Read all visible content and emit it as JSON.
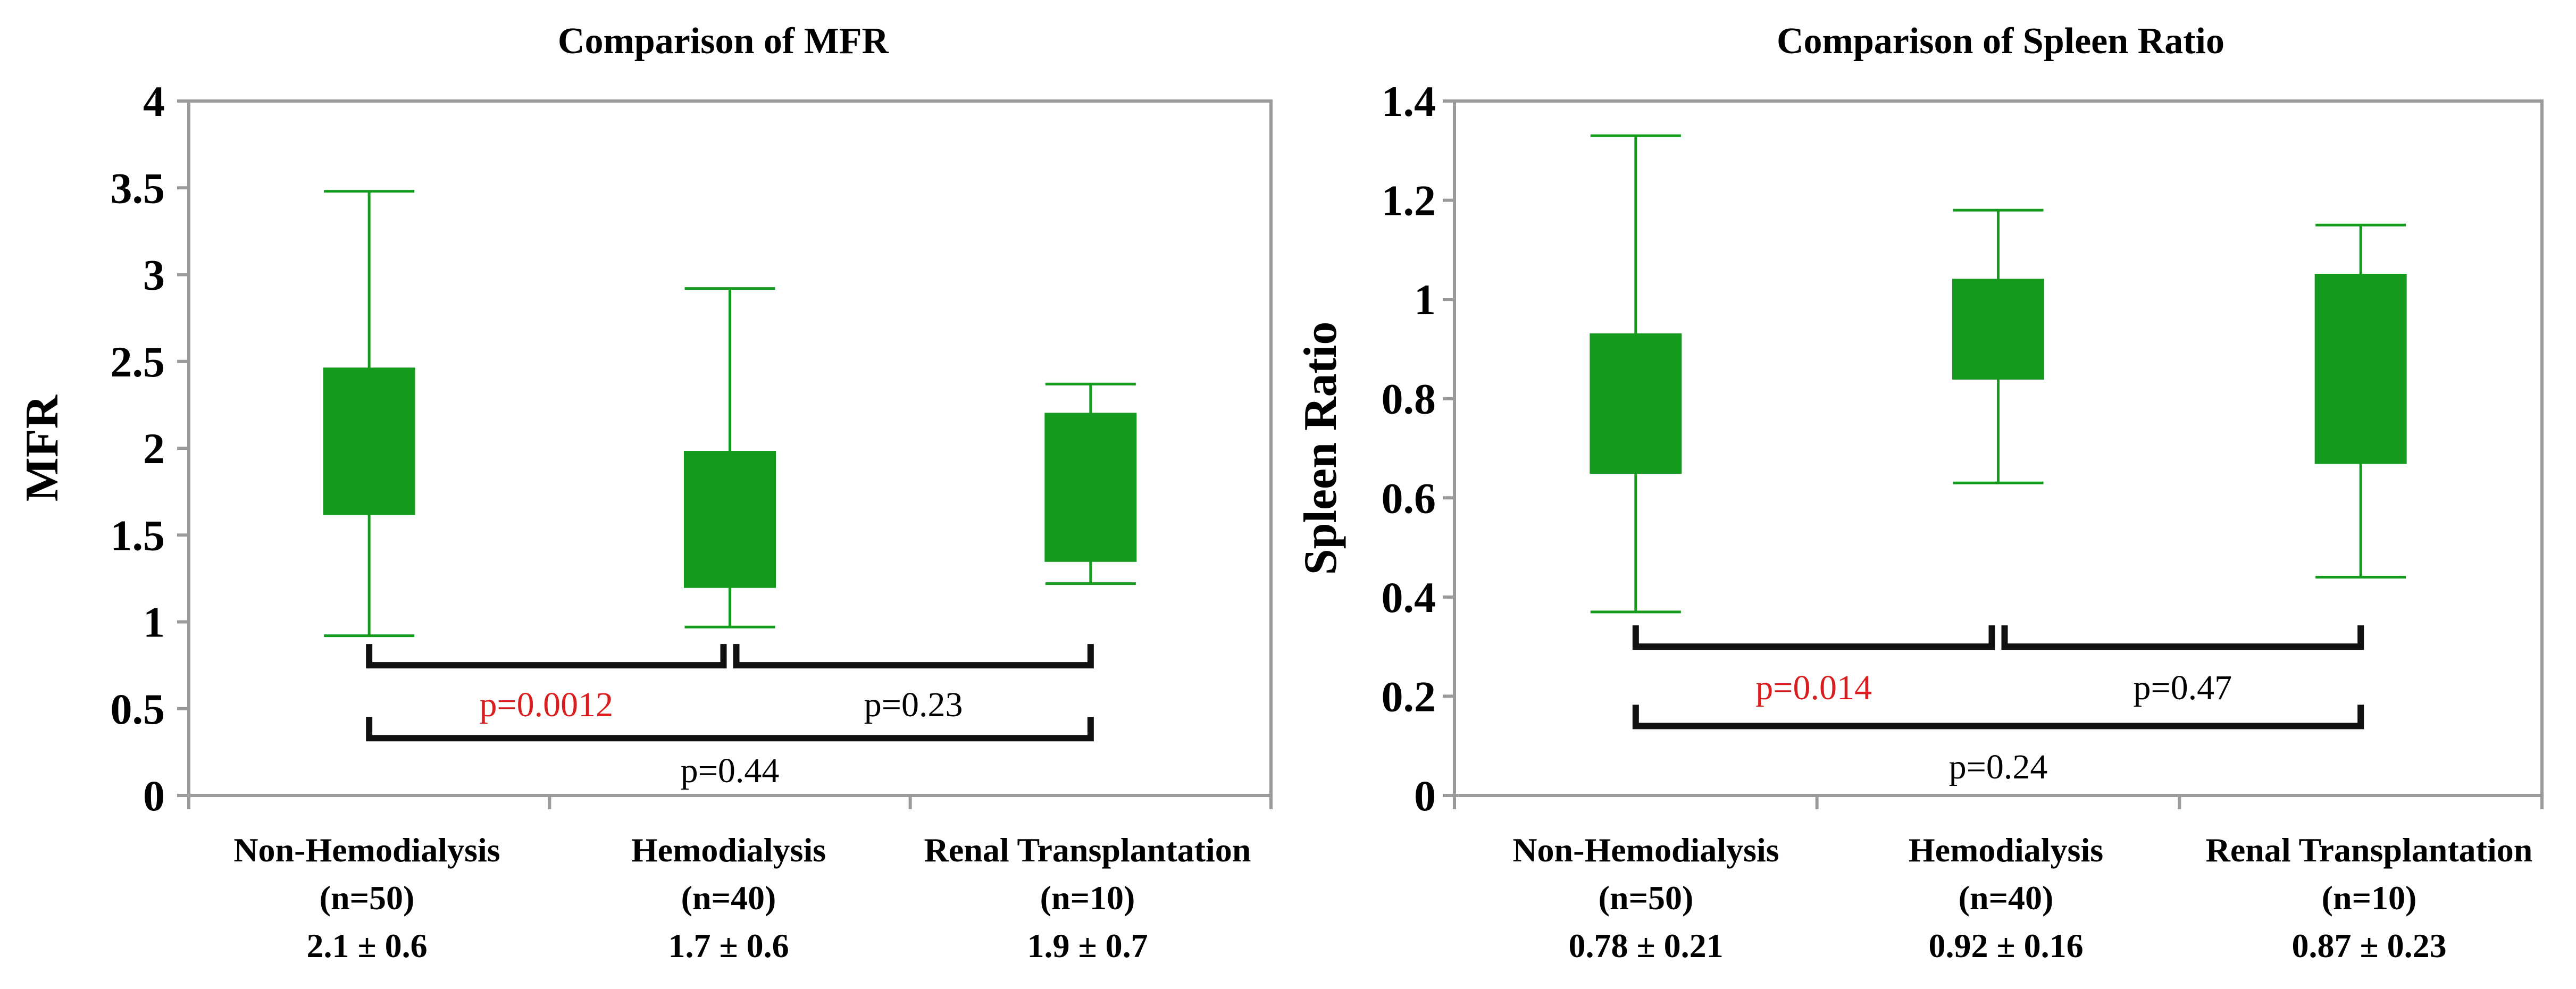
{
  "colors": {
    "box": "#149b1e",
    "axis": "#9a9a9a",
    "bracket": "#111111",
    "significant": "#d81e1e",
    "text": "#000000"
  },
  "chart_data": [
    {
      "type": "box",
      "title": "Comparison of MFR",
      "ylabel": "MFR",
      "xlabel": "",
      "ylim": [
        0,
        4
      ],
      "yticks": [
        "0",
        "0.5",
        "1",
        "1.5",
        "2",
        "2.5",
        "3",
        "3.5",
        "4"
      ],
      "categories": [
        {
          "name": "Non-Hemodialysis",
          "n": "(n=50)",
          "stat": "2.1 ± 0.6"
        },
        {
          "name": "Hemodialysis",
          "n": "(n=40)",
          "stat": "1.7 ± 0.6"
        },
        {
          "name": "Renal Transplantation",
          "n": "(n=10)",
          "stat": "1.9 ± 0.7"
        }
      ],
      "boxes": [
        {
          "min": 0.92,
          "q1": 1.62,
          "q3": 2.46,
          "max": 3.48
        },
        {
          "min": 0.97,
          "q1": 1.2,
          "q3": 1.98,
          "max": 2.92
        },
        {
          "min": 1.22,
          "q1": 1.35,
          "q3": 2.2,
          "max": 2.37
        }
      ],
      "comparisons": [
        {
          "from": 0,
          "to": 1,
          "label": "p=0.0012",
          "significant": true,
          "level": 0.75,
          "label_value": 0.53
        },
        {
          "from": 1,
          "to": 2,
          "label": "p=0.23",
          "significant": false,
          "level": 0.75,
          "label_value": 0.53
        },
        {
          "from": 0,
          "to": 2,
          "label": "p=0.44",
          "significant": false,
          "level": 0.33,
          "label_value": 0.15
        }
      ]
    },
    {
      "type": "box",
      "title": "Comparison of Spleen Ratio",
      "ylabel": "Spleen Ratio",
      "xlabel": "",
      "ylim": [
        0,
        1.4
      ],
      "yticks": [
        "0",
        "0.2",
        "0.4",
        "0.6",
        "0.8",
        "1",
        "1.2",
        "1.4"
      ],
      "categories": [
        {
          "name": "Non-Hemodialysis",
          "n": "(n=50)",
          "stat": "0.78 ± 0.21"
        },
        {
          "name": "Hemodialysis",
          "n": "(n=40)",
          "stat": "0.92 ± 0.16"
        },
        {
          "name": "Renal Transplantation",
          "n": "(n=10)",
          "stat": "0.87 ± 0.23"
        }
      ],
      "boxes": [
        {
          "min": 0.37,
          "q1": 0.65,
          "q3": 0.93,
          "max": 1.33
        },
        {
          "min": 0.63,
          "q1": 0.84,
          "q3": 1.04,
          "max": 1.18
        },
        {
          "min": 0.44,
          "q1": 0.67,
          "q3": 1.05,
          "max": 1.15
        }
      ],
      "comparisons": [
        {
          "from": 0,
          "to": 1,
          "label": "p=0.014",
          "significant": true,
          "level": 0.3,
          "label_value": 0.22
        },
        {
          "from": 1,
          "to": 2,
          "label": "p=0.47",
          "significant": false,
          "level": 0.3,
          "label_value": 0.22
        },
        {
          "from": 0,
          "to": 2,
          "label": "p=0.24",
          "significant": false,
          "level": 0.14,
          "label_value": 0.06
        }
      ]
    }
  ]
}
